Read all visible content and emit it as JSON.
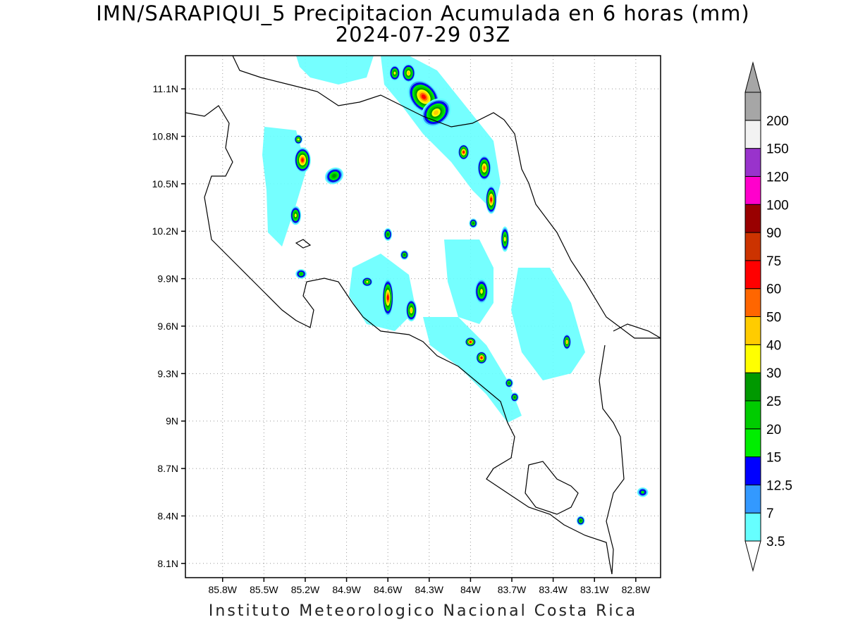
{
  "title_line1": "IMN/SARAPIQUI_5 Precipitacion Acumulada en 6 horas (mm)",
  "title_line2": "2024-07-29 03Z",
  "footer": "Instituto Meteorologico Nacional Costa Rica",
  "map": {
    "lon_range": [
      -86.07,
      -82.62
    ],
    "lat_range": [
      8.01,
      11.31
    ],
    "lat_ticks": [
      {
        "value": 11.1,
        "label": "11.1N"
      },
      {
        "value": 10.8,
        "label": "10.8N"
      },
      {
        "value": 10.5,
        "label": "10.5N"
      },
      {
        "value": 10.2,
        "label": "10.2N"
      },
      {
        "value": 9.9,
        "label": "9.9N"
      },
      {
        "value": 9.6,
        "label": "9.6N"
      },
      {
        "value": 9.3,
        "label": "9.3N"
      },
      {
        "value": 9.0,
        "label": "9N"
      },
      {
        "value": 8.7,
        "label": "8.7N"
      },
      {
        "value": 8.4,
        "label": "8.4N"
      },
      {
        "value": 8.1,
        "label": "8.1N"
      }
    ],
    "lon_ticks": [
      {
        "value": -85.8,
        "label": "85.8W"
      },
      {
        "value": -85.5,
        "label": "85.5W"
      },
      {
        "value": -85.2,
        "label": "85.2W"
      },
      {
        "value": -84.9,
        "label": "84.9W"
      },
      {
        "value": -84.6,
        "label": "84.6W"
      },
      {
        "value": -84.3,
        "label": "84.3W"
      },
      {
        "value": -84.0,
        "label": "84W"
      },
      {
        "value": -83.7,
        "label": "83.7W"
      },
      {
        "value": -83.4,
        "label": "83.4W"
      },
      {
        "value": -83.1,
        "label": "83.1W"
      },
      {
        "value": -82.8,
        "label": "82.8W"
      }
    ],
    "grid": "dotted"
  },
  "colorbar": {
    "position": "right",
    "levels": [
      {
        "label": "3.5",
        "color": "#66ffff"
      },
      {
        "label": "7",
        "color": "#3399ff"
      },
      {
        "label": "12.5",
        "color": "#0000ff"
      },
      {
        "label": "15",
        "color": "#00ee00"
      },
      {
        "label": "20",
        "color": "#00cc00"
      },
      {
        "label": "25",
        "color": "#009900"
      },
      {
        "label": "30",
        "color": "#ffff00"
      },
      {
        "label": "40",
        "color": "#ffcc00"
      },
      {
        "label": "50",
        "color": "#ff6600"
      },
      {
        "label": "60",
        "color": "#ff0000"
      },
      {
        "label": "75",
        "color": "#cc3300"
      },
      {
        "label": "90",
        "color": "#990000"
      },
      {
        "label": "100",
        "color": "#ff00cc"
      },
      {
        "label": "120",
        "color": "#9933cc"
      },
      {
        "label": "150",
        "color": "#f2f2f2"
      },
      {
        "label": "200",
        "color": "#a6a6a6"
      }
    ]
  },
  "precip_cells": [
    {
      "lon": -84.34,
      "lat": 11.05,
      "rx": 0.1,
      "ry": 0.12,
      "level": 9,
      "angle": -40
    },
    {
      "lon": -84.25,
      "lat": 10.95,
      "rx": 0.12,
      "ry": 0.08,
      "level": 7,
      "angle": -40
    },
    {
      "lon": -84.45,
      "lat": 11.2,
      "rx": 0.05,
      "ry": 0.06,
      "level": 7,
      "angle": 0
    },
    {
      "lon": -84.55,
      "lat": 11.2,
      "rx": 0.04,
      "ry": 0.05,
      "level": 6,
      "angle": 0
    },
    {
      "lon": -84.05,
      "lat": 10.7,
      "rx": 0.04,
      "ry": 0.05,
      "level": 9,
      "angle": 0
    },
    {
      "lon": -83.9,
      "lat": 10.6,
      "rx": 0.05,
      "ry": 0.08,
      "level": 8,
      "angle": 0
    },
    {
      "lon": -83.85,
      "lat": 10.4,
      "rx": 0.04,
      "ry": 0.09,
      "level": 9,
      "angle": 0
    },
    {
      "lon": -85.22,
      "lat": 10.65,
      "rx": 0.06,
      "ry": 0.08,
      "level": 9,
      "angle": 0
    },
    {
      "lon": -85.25,
      "lat": 10.78,
      "rx": 0.03,
      "ry": 0.03,
      "level": 6,
      "angle": 0
    },
    {
      "lon": -84.99,
      "lat": 10.55,
      "rx": 0.07,
      "ry": 0.05,
      "level": 5,
      "angle": -30
    },
    {
      "lon": -85.27,
      "lat": 10.3,
      "rx": 0.04,
      "ry": 0.06,
      "level": 6,
      "angle": 0
    },
    {
      "lon": -84.6,
      "lat": 9.78,
      "rx": 0.04,
      "ry": 0.12,
      "level": 9,
      "angle": 0
    },
    {
      "lon": -84.75,
      "lat": 9.88,
      "rx": 0.04,
      "ry": 0.03,
      "level": 6,
      "angle": 0
    },
    {
      "lon": -84.43,
      "lat": 9.7,
      "rx": 0.04,
      "ry": 0.07,
      "level": 7,
      "angle": 0
    },
    {
      "lon": -84.0,
      "lat": 9.5,
      "rx": 0.04,
      "ry": 0.03,
      "level": 9,
      "angle": 0
    },
    {
      "lon": -83.92,
      "lat": 9.4,
      "rx": 0.04,
      "ry": 0.04,
      "level": 9,
      "angle": 0
    },
    {
      "lon": -83.92,
      "lat": 9.82,
      "rx": 0.05,
      "ry": 0.08,
      "level": 6,
      "angle": 0
    },
    {
      "lon": -83.75,
      "lat": 10.15,
      "rx": 0.03,
      "ry": 0.08,
      "level": 6,
      "angle": 0
    },
    {
      "lon": -83.3,
      "lat": 9.5,
      "rx": 0.03,
      "ry": 0.05,
      "level": 7,
      "angle": 0
    },
    {
      "lon": -84.48,
      "lat": 10.05,
      "rx": 0.03,
      "ry": 0.03,
      "level": 5,
      "angle": 0
    },
    {
      "lon": -84.6,
      "lat": 10.18,
      "rx": 0.03,
      "ry": 0.04,
      "level": 5,
      "angle": 0
    },
    {
      "lon": -83.98,
      "lat": 10.25,
      "rx": 0.03,
      "ry": 0.03,
      "level": 5,
      "angle": 0
    },
    {
      "lon": -85.23,
      "lat": 9.93,
      "rx": 0.04,
      "ry": 0.03,
      "level": 4,
      "angle": 0
    },
    {
      "lon": -83.72,
      "lat": 9.24,
      "rx": 0.03,
      "ry": 0.03,
      "level": 5,
      "angle": 0
    },
    {
      "lon": -83.68,
      "lat": 9.15,
      "rx": 0.03,
      "ry": 0.03,
      "level": 5,
      "angle": 0
    },
    {
      "lon": -83.2,
      "lat": 8.37,
      "rx": 0.03,
      "ry": 0.03,
      "level": 5,
      "angle": 0
    },
    {
      "lon": -82.75,
      "lat": 8.55,
      "rx": 0.04,
      "ry": 0.03,
      "level": 3,
      "angle": 0
    }
  ]
}
